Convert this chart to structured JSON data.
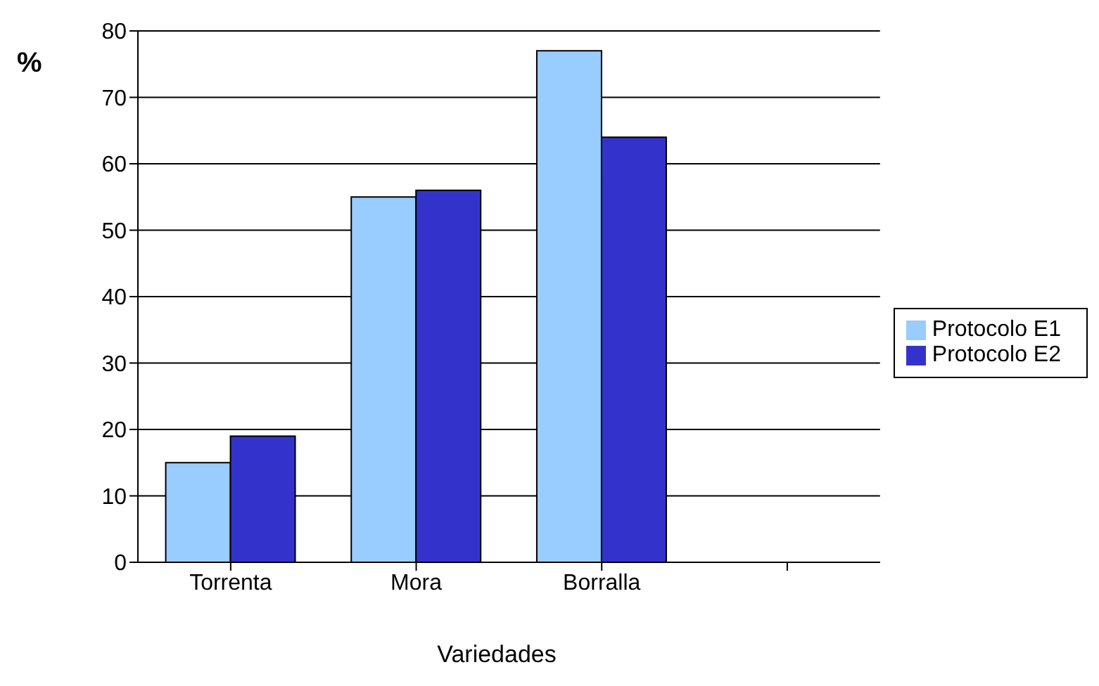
{
  "chart_data": {
    "type": "bar",
    "xlabel": "Variedades",
    "ylabel": "%",
    "categories": [
      "Torrenta",
      "Mora",
      "Borralla",
      null
    ],
    "series": [
      {
        "name": "Protocolo E1",
        "color": "#99ccff",
        "values": [
          15,
          55,
          77,
          null
        ]
      },
      {
        "name": "Protocolo E2",
        "color": "#3333cc",
        "values": [
          19,
          56,
          64,
          null
        ]
      }
    ],
    "ylim": [
      0,
      80
    ],
    "yticks": [
      0,
      10,
      20,
      30,
      40,
      50,
      60,
      70,
      80
    ],
    "grid": "y",
    "legend": "right"
  }
}
